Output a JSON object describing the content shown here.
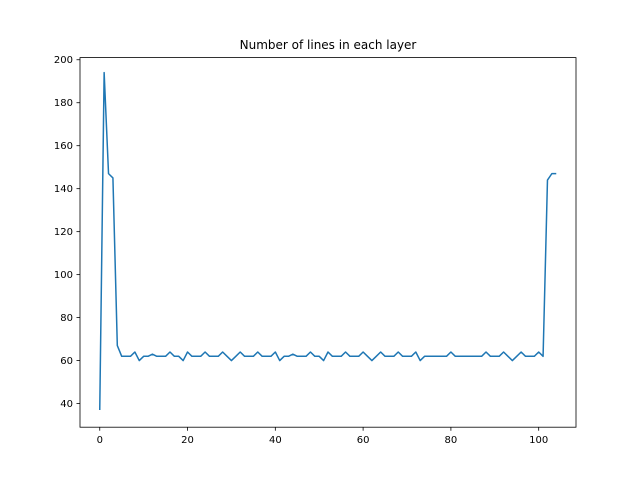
{
  "chart_data": {
    "type": "line",
    "title": "Number of lines in each layer",
    "xlabel": "",
    "ylabel": "",
    "xlim": [
      -4.5,
      108.5
    ],
    "ylim": [
      29,
      201
    ],
    "xticks": [
      0,
      20,
      40,
      60,
      80,
      100
    ],
    "yticks": [
      40,
      60,
      80,
      100,
      120,
      140,
      160,
      180,
      200
    ],
    "grid": false,
    "line_color": "#1f77b4",
    "series": [
      {
        "x": [
          0,
          1,
          2,
          3,
          4,
          5,
          6,
          7,
          8,
          9,
          10,
          11,
          12,
          13,
          14,
          15,
          16,
          17,
          18,
          19,
          20,
          21,
          22,
          23,
          24,
          25,
          26,
          27,
          28,
          29,
          30,
          31,
          32,
          33,
          34,
          35,
          36,
          37,
          38,
          39,
          40,
          41,
          42,
          43,
          44,
          45,
          46,
          47,
          48,
          49,
          50,
          51,
          52,
          53,
          54,
          55,
          56,
          57,
          58,
          59,
          60,
          61,
          62,
          63,
          64,
          65,
          66,
          67,
          68,
          69,
          70,
          71,
          72,
          73,
          74,
          75,
          76,
          77,
          78,
          79,
          80,
          81,
          82,
          83,
          84,
          85,
          86,
          87,
          88,
          89,
          90,
          91,
          92,
          93,
          94,
          95,
          96,
          97,
          98,
          99,
          100,
          101,
          102,
          103,
          104
        ],
        "values": [
          37,
          194,
          147,
          145,
          67,
          62,
          62,
          62,
          64,
          60,
          62,
          62,
          63,
          62,
          62,
          62,
          64,
          62,
          62,
          60,
          64,
          62,
          62,
          62,
          64,
          62,
          62,
          62,
          64,
          62,
          60,
          62,
          64,
          62,
          62,
          62,
          64,
          62,
          62,
          62,
          64,
          60,
          62,
          62,
          63,
          62,
          62,
          62,
          64,
          62,
          62,
          60,
          64,
          62,
          62,
          62,
          64,
          62,
          62,
          62,
          64,
          62,
          60,
          62,
          64,
          62,
          62,
          62,
          64,
          62,
          62,
          62,
          64,
          60,
          62,
          62,
          62,
          62,
          62,
          62,
          64,
          62,
          62,
          62,
          62,
          62,
          62,
          62,
          64,
          62,
          62,
          62,
          64,
          62,
          60,
          62,
          64,
          62,
          62,
          62,
          64,
          62,
          144,
          147,
          147
        ]
      }
    ]
  }
}
